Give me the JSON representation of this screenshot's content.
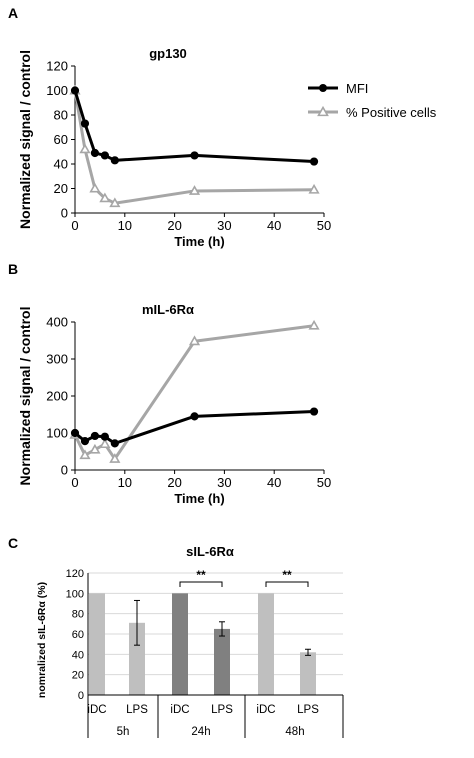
{
  "panels": {
    "a": {
      "letter": "A"
    },
    "b": {
      "letter": "B"
    },
    "c": {
      "letter": "C"
    }
  },
  "chart_data": [
    {
      "type": "line",
      "title": "gp130",
      "xlabel": "Time (h)",
      "ylabel": "Normalized signal / control",
      "xlim": [
        0,
        50
      ],
      "ylim": [
        0,
        120
      ],
      "xticks": [
        0,
        10,
        20,
        30,
        40,
        50
      ],
      "yticks": [
        0,
        20,
        40,
        60,
        80,
        100,
        120
      ],
      "legend_position": "top-right",
      "series": [
        {
          "name": "MFI",
          "color": "#000000",
          "marker": "circle",
          "x": [
            0,
            2,
            4,
            6,
            8,
            24,
            48
          ],
          "y": [
            100,
            73,
            49,
            47,
            43,
            47,
            42
          ]
        },
        {
          "name": "% Positive cells",
          "color": "#a6a6a6",
          "marker": "triangle",
          "x": [
            0,
            2,
            4,
            6,
            8,
            24,
            48
          ],
          "y": [
            100,
            52,
            20,
            12,
            8,
            18,
            19
          ]
        }
      ]
    },
    {
      "type": "line",
      "title": "mIL-6Rα",
      "xlabel": "Time (h)",
      "ylabel": "Normalized signal / control",
      "xlim": [
        0,
        50
      ],
      "ylim": [
        0,
        400
      ],
      "xticks": [
        0,
        10,
        20,
        30,
        40,
        50
      ],
      "yticks": [
        0,
        100,
        200,
        300,
        400
      ],
      "series": [
        {
          "name": "MFI",
          "color": "#000000",
          "marker": "circle",
          "x": [
            0,
            2,
            4,
            6,
            8,
            24,
            48
          ],
          "y": [
            100,
            78,
            92,
            90,
            72,
            145,
            158
          ]
        },
        {
          "name": "% Positive cells",
          "color": "#a6a6a6",
          "marker": "triangle",
          "x": [
            0,
            2,
            4,
            6,
            8,
            24,
            48
          ],
          "y": [
            95,
            40,
            55,
            70,
            30,
            348,
            390
          ]
        }
      ]
    },
    {
      "type": "bar",
      "title": "sIL-6Rα",
      "ylabel": "nomralized sIL-6Rα (%)",
      "ylim": [
        0,
        120
      ],
      "yticks": [
        0,
        20,
        40,
        60,
        80,
        100,
        120
      ],
      "categories": [
        "iDC",
        "LPS",
        "iDC",
        "LPS",
        "iDC",
        "LPS"
      ],
      "groups": [
        "5h",
        "24h",
        "48h"
      ],
      "values": [
        100,
        71,
        100,
        65,
        100,
        42
      ],
      "errors": [
        0,
        22,
        0,
        7,
        0,
        3
      ],
      "colors": [
        "#bfbfbf",
        "#bfbfbf",
        "#808080",
        "#808080",
        "#bfbfbf",
        "#bfbfbf"
      ],
      "significance": [
        {
          "group": "24h",
          "label": "**"
        },
        {
          "group": "48h",
          "label": "**"
        }
      ]
    }
  ]
}
